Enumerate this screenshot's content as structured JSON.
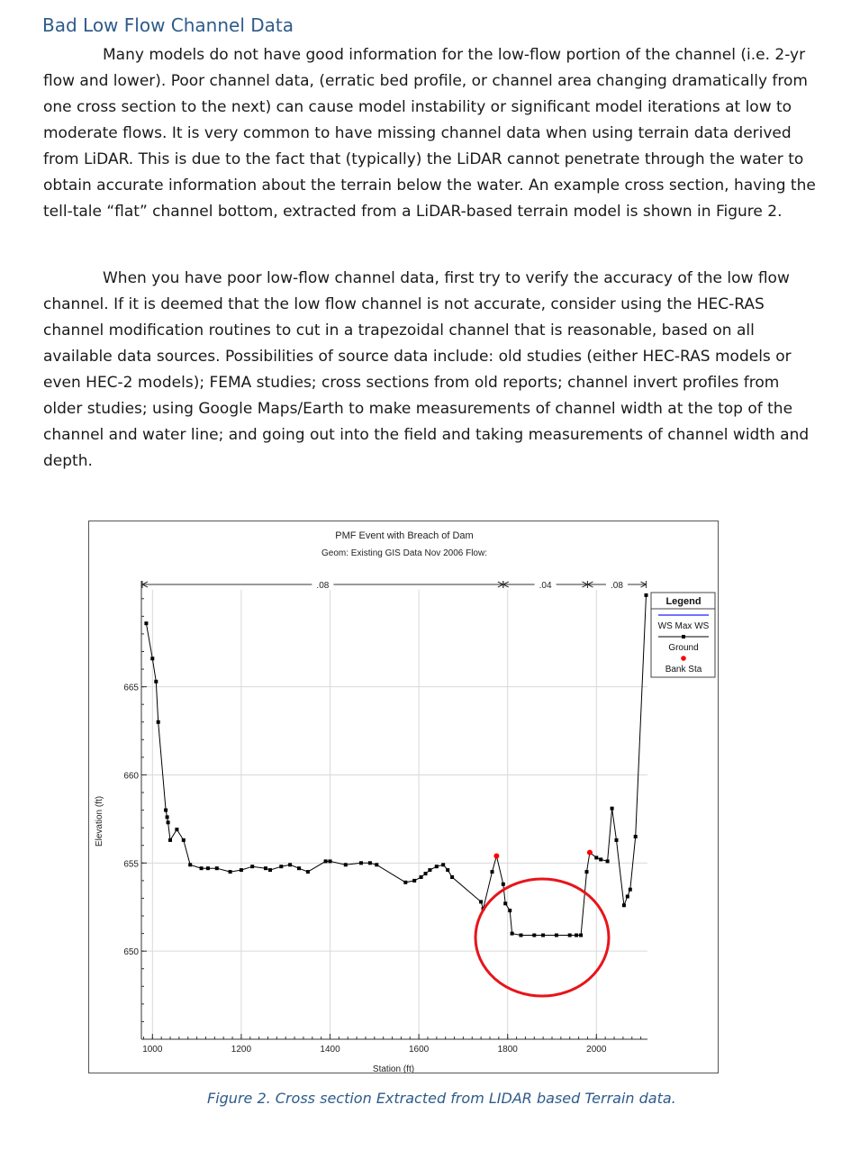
{
  "heading": "Bad Low Flow Channel Data",
  "paragraphs": [
    "Many models do not have good information for the low-flow portion of the channel (i.e. 2-yr flow and lower).  Poor channel data, (erratic bed profile, or channel area changing dramatically from one cross section to the next) can cause model instability or significant model iterations at low to moderate flows.  It is very common to have missing channel data when using terrain data derived from LiDAR.  This is due to the fact that (typically) the LiDAR cannot penetrate through the water to obtain accurate information about the terrain below the water.  An example cross section, having the tell-tale “flat” channel bottom, extracted from a LiDAR-based terrain model is shown in Figure 2.",
    "When you have poor low-flow channel data, first try to verify the accuracy of the low flow channel.  If it is deemed that the low flow channel is not accurate, consider using the HEC-RAS channel modification routines to cut in a trapezoidal channel that is reasonable, based on all available data sources.  Possibilities of source data include:  old studies (either HEC-RAS models or even HEC-2 models); FEMA studies; cross sections from old reports; channel invert profiles from older studies; using Google Maps/Earth to make measurements of channel width at the top of the channel and water line; and going out into the field and taking measurements of channel width and depth."
  ],
  "caption": "Figure 2.  Cross section Extracted from LIDAR based Terrain data.",
  "chart_data": {
    "type": "line",
    "title": "PMF Event with Breach of Dam",
    "subtitle": "Geom: Existing GIS Data Nov 2006   Flow:",
    "xlabel": "Station (ft)",
    "ylabel": "Elevation (ft)",
    "xlim": [
      975,
      2115
    ],
    "ylim": [
      645,
      670.5
    ],
    "x_ticks": [
      1000,
      1200,
      1400,
      1600,
      1800,
      2000
    ],
    "y_ticks": [
      650,
      655,
      660,
      665
    ],
    "grid": true,
    "legend_position": "top-right",
    "legend": {
      "title": "Legend",
      "entries": [
        {
          "name": "WS Max WS",
          "color": "#4444ff"
        },
        {
          "name": "Ground",
          "color": "#000000"
        },
        {
          "name": "Bank Sta",
          "color": "#ff0000"
        }
      ]
    },
    "roughness": [
      {
        "label": ".08",
        "from": 977,
        "to": 1790
      },
      {
        "label": ".04",
        "from": 1790,
        "to": 1980
      },
      {
        "label": ".08",
        "from": 1980,
        "to": 2112
      }
    ],
    "series": [
      {
        "name": "Ground",
        "color": "#000000",
        "points": [
          [
            986,
            668.6
          ],
          [
            1000,
            666.6
          ],
          [
            1008,
            665.3
          ],
          [
            1013,
            663.0
          ],
          [
            1030,
            658.0
          ],
          [
            1033,
            657.6
          ],
          [
            1035,
            657.3
          ],
          [
            1040,
            656.3
          ],
          [
            1055,
            656.9
          ],
          [
            1070,
            656.3
          ],
          [
            1085,
            654.9
          ],
          [
            1110,
            654.7
          ],
          [
            1125,
            654.7
          ],
          [
            1145,
            654.7
          ],
          [
            1175,
            654.5
          ],
          [
            1200,
            654.6
          ],
          [
            1225,
            654.8
          ],
          [
            1255,
            654.7
          ],
          [
            1265,
            654.6
          ],
          [
            1290,
            654.8
          ],
          [
            1310,
            654.9
          ],
          [
            1330,
            654.7
          ],
          [
            1350,
            654.5
          ],
          [
            1390,
            655.1
          ],
          [
            1400,
            655.1
          ],
          [
            1435,
            654.9
          ],
          [
            1470,
            655.0
          ],
          [
            1490,
            655.0
          ],
          [
            1505,
            654.9
          ],
          [
            1570,
            653.9
          ],
          [
            1590,
            654.0
          ],
          [
            1605,
            654.2
          ],
          [
            1615,
            654.4
          ],
          [
            1625,
            654.6
          ],
          [
            1640,
            654.8
          ],
          [
            1655,
            654.9
          ],
          [
            1665,
            654.6
          ],
          [
            1675,
            654.2
          ],
          [
            1740,
            652.8
          ],
          [
            1745,
            652.4
          ],
          [
            1765,
            654.5
          ],
          [
            1775,
            655.4
          ],
          [
            1790,
            653.8
          ],
          [
            1795,
            652.7
          ],
          [
            1805,
            652.3
          ],
          [
            1810,
            651.0
          ],
          [
            1830,
            650.9
          ],
          [
            1860,
            650.9
          ],
          [
            1880,
            650.9
          ],
          [
            1910,
            650.9
          ],
          [
            1940,
            650.9
          ],
          [
            1955,
            650.9
          ],
          [
            1965,
            650.9
          ],
          [
            1978,
            654.5
          ],
          [
            1985,
            655.6
          ],
          [
            2000,
            655.3
          ],
          [
            2010,
            655.2
          ],
          [
            2025,
            655.1
          ],
          [
            2035,
            658.1
          ],
          [
            2045,
            656.3
          ],
          [
            2062,
            652.6
          ],
          [
            2070,
            653.1
          ],
          [
            2076,
            653.5
          ],
          [
            2088,
            656.5
          ],
          [
            2112,
            670.2
          ]
        ]
      }
    ],
    "bank_stations": [
      [
        1775,
        655.4
      ],
      [
        1985,
        655.6
      ]
    ]
  }
}
